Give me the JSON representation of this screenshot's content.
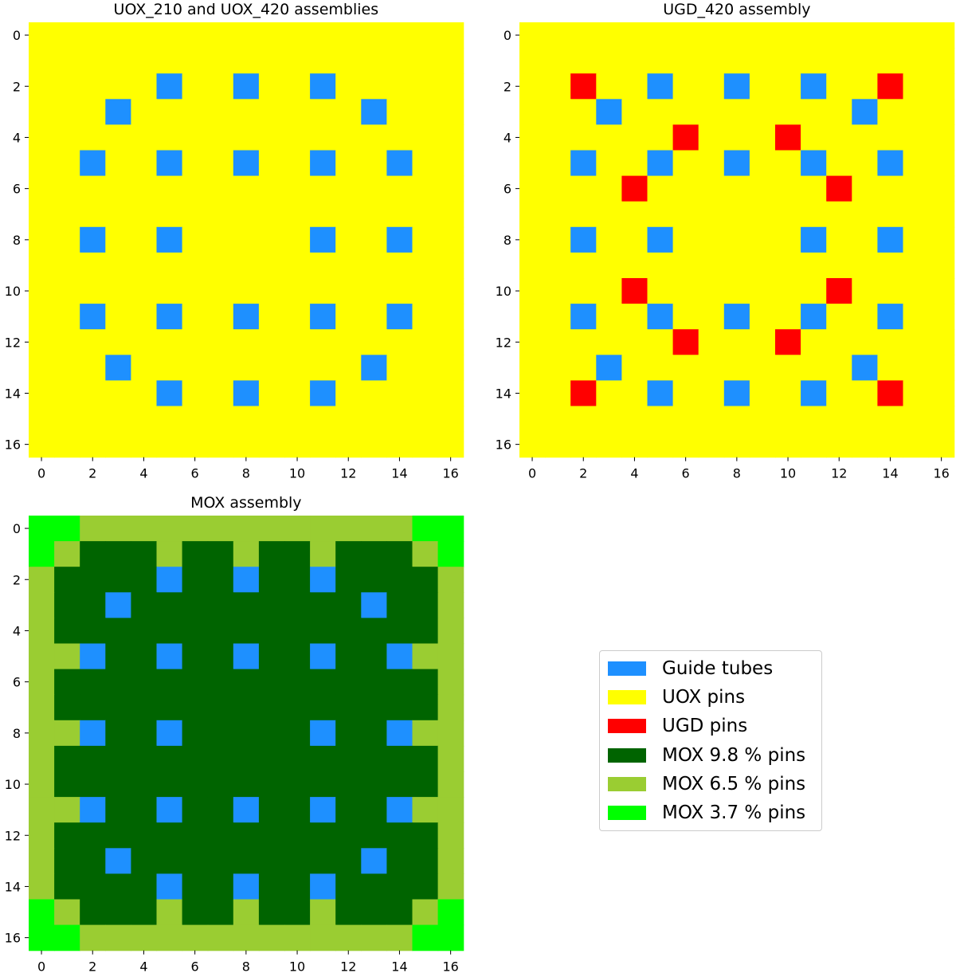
{
  "colors": {
    "guide": "#1e90ff",
    "uox": "#ffff00",
    "ugd": "#ff0000",
    "mox98": "#006400",
    "mox65": "#9acd32",
    "mox37": "#00ff00"
  },
  "chart_data": [
    {
      "type": "heatmap",
      "title": "UOX_210 and UOX_420 assemblies",
      "xlim": [
        0,
        16
      ],
      "ylim": [
        0,
        16
      ],
      "xticks": [
        0,
        2,
        4,
        6,
        8,
        10,
        12,
        14,
        16
      ],
      "yticks": [
        0,
        2,
        4,
        6,
        8,
        10,
        12,
        14,
        16
      ],
      "categories": [
        "Guide tubes",
        "UOX pins"
      ],
      "grid": [
        "UUUUUUUUUUUUUUUUU",
        "UUUUUUUUUUUUUUUUU",
        "UUUUUGUUGUUGUUUUU",
        "UUUGUUUUUUUUUGUUU",
        "UUUUUUUUUUUUUUUUU",
        "UUGUUGUUGUUGUUGUU",
        "UUUUUUUUUUUUUUUUU",
        "UUUUUUUUUUUUUUUUU",
        "UUGUUGUUUUUGUUGUU",
        "UUUUUUUUUUUUUUUUU",
        "UUUUUUUUUUUUUUUUU",
        "UUGUUGUUGUUGUUGUU",
        "UUUUUUUUUUUUUUUUU",
        "UUUGUUUUUUUUUGUUU",
        "UUUUUGUUGUUGUUUUU",
        "UUUUUUUUUUUUUUUUU",
        "UUUUUUUUUUUUUUUUU"
      ]
    },
    {
      "type": "heatmap",
      "title": "UGD_420 assembly",
      "xlim": [
        0,
        16
      ],
      "ylim": [
        0,
        16
      ],
      "xticks": [
        0,
        2,
        4,
        6,
        8,
        10,
        12,
        14,
        16
      ],
      "yticks": [
        0,
        2,
        4,
        6,
        8,
        10,
        12,
        14,
        16
      ],
      "categories": [
        "Guide tubes",
        "UOX pins",
        "UGD pins"
      ],
      "grid": [
        "UUUUUUUUUUUUUUUUU",
        "UUUUUUUUUUUUUUUUU",
        "UURUUGUUGUUGUURUU",
        "UUUGUUUUUUUUUGUUU",
        "UUUUUURUUURUUUUUU",
        "UUGUUGUUGUUGUUGUU",
        "UUUURUUUUUUURUUUU",
        "UUUUUUUUUUUUUUUUU",
        "UUGUUGUUUUUGUUGUU",
        "UUUUUUUUUUUUUUUUU",
        "UUUURUUUUUUURUUUU",
        "UUGUUGUUGUUGUUGUU",
        "UUUUUURUUURUUUUUU",
        "UUUGUUUUUUUUUGUUU",
        "UURUUGUUGUUGUURUU",
        "UUUUUUUUUUUUUUUUU",
        "UUUUUUUUUUUUUUUUU"
      ]
    },
    {
      "type": "heatmap",
      "title": "MOX assembly",
      "xlim": [
        0,
        16
      ],
      "ylim": [
        0,
        16
      ],
      "xticks": [
        0,
        2,
        4,
        6,
        8,
        10,
        12,
        14,
        16
      ],
      "yticks": [
        0,
        2,
        4,
        6,
        8,
        10,
        12,
        14,
        16
      ],
      "categories": [
        "Guide tubes",
        "MOX 9.8 % pins",
        "MOX 6.5 % pins",
        "MOX 3.7 % pins"
      ],
      "grid": [
        "LLMMMMMMMMMMMMMLL",
        "LMHHHMHHMHHMHHHML",
        "MHHHHGHHGHHGHHHHM",
        "MHHGHHHHHHHHHGHHM",
        "MHHHHHHHHHHHHHHHM",
        "MMGHHGHHGHHGHHGMM",
        "MHHHHHHHHHHHHHHHM",
        "MHHHHHHHHHHHHHHHM",
        "MMGHHGHHHHHGHHGMM",
        "MHHHHHHHHHHHHHHHM",
        "MHHHHHHHHHHHHHHHM",
        "MMGHHGHHGHHGHHGMM",
        "MHHHHHHHHHHHHHHHM",
        "MHHGHHHHHHHHHGHHM",
        "MHHHHGHHGHHGHHHHM",
        "LMHHHMHHMHHMHHHML",
        "LLMMMMMMMMMMMMMLL"
      ]
    }
  ],
  "legend": {
    "placement": "lower-right",
    "items": [
      {
        "label": "Guide tubes",
        "color": "#1e90ff"
      },
      {
        "label": "UOX pins",
        "color": "#ffff00"
      },
      {
        "label": "UGD pins",
        "color": "#ff0000"
      },
      {
        "label": "MOX 9.8 % pins",
        "color": "#006400"
      },
      {
        "label": "MOX 6.5 % pins",
        "color": "#9acd32"
      },
      {
        "label": "MOX 3.7 % pins",
        "color": "#00ff00"
      }
    ]
  }
}
